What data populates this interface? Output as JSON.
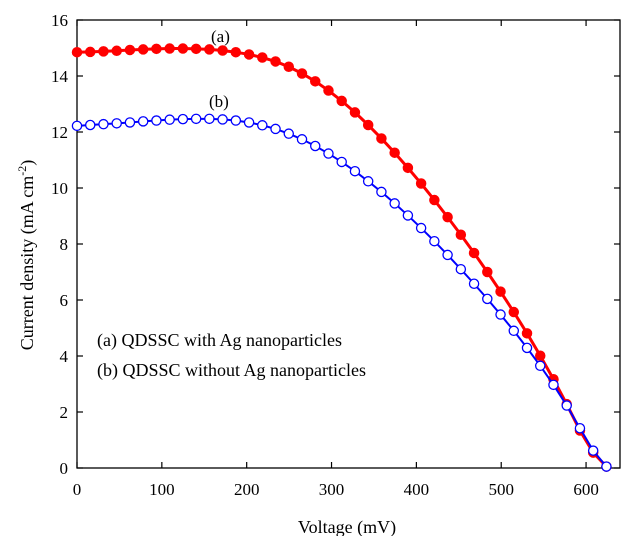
{
  "chart_data": {
    "type": "line",
    "xlabel": "Voltage (mV)",
    "ylabel_main": "Current density (mA cm",
    "ylabel_sup": "-2",
    "ylabel_close": ")",
    "xlim": [
      0,
      640
    ],
    "ylim": [
      0,
      16
    ],
    "x_ticks": [
      0,
      100,
      200,
      300,
      400,
      500,
      600
    ],
    "y_ticks": [
      0,
      2,
      4,
      6,
      8,
      10,
      12,
      14,
      16
    ],
    "legend": [
      "(a) QDSSC with Ag nanoparticles",
      "(b) QDSSC without Ag nanoparticles"
    ],
    "legend_position": "lower-left",
    "grid": false,
    "series": [
      {
        "label": "(a)",
        "color": "#ff0000",
        "marker": "filled-circle",
        "x": [
          0,
          15.6,
          31.2,
          46.8,
          62.4,
          78,
          93.6,
          109.2,
          124.8,
          140.4,
          156,
          171.6,
          187.2,
          202.8,
          218.4,
          234,
          249.6,
          265.2,
          280.8,
          296.4,
          312,
          327.6,
          343.2,
          358.8,
          374.4,
          390,
          405.6,
          421.2,
          436.8,
          452.4,
          468,
          483.6,
          499.2,
          514.8,
          530.4,
          546,
          561.6,
          577.2,
          592.8,
          608.4,
          624
        ],
        "y": [
          14.85,
          14.86,
          14.88,
          14.9,
          14.93,
          14.95,
          14.97,
          14.98,
          14.98,
          14.97,
          14.95,
          14.91,
          14.85,
          14.77,
          14.66,
          14.52,
          14.33,
          14.09,
          13.81,
          13.48,
          13.11,
          12.7,
          12.25,
          11.77,
          11.26,
          10.72,
          10.16,
          9.57,
          8.96,
          8.33,
          7.68,
          7.0,
          6.3,
          5.57,
          4.81,
          4.01,
          3.17,
          2.28,
          1.34,
          0.55,
          0.05
        ]
      },
      {
        "label": "(b)",
        "color": "#0000ff",
        "marker": "open-circle",
        "x": [
          0,
          15.6,
          31.2,
          46.8,
          62.4,
          78,
          93.6,
          109.2,
          124.8,
          140.4,
          156,
          171.6,
          187.2,
          202.8,
          218.4,
          234,
          249.6,
          265.2,
          280.8,
          296.4,
          312,
          327.6,
          343.2,
          358.8,
          374.4,
          390,
          405.6,
          421.2,
          436.8,
          452.4,
          468,
          483.6,
          499.2,
          514.8,
          530.4,
          546,
          561.6,
          577.2,
          592.8,
          608.4,
          624
        ],
        "y": [
          12.22,
          12.25,
          12.28,
          12.31,
          12.34,
          12.38,
          12.41,
          12.44,
          12.46,
          12.47,
          12.47,
          12.45,
          12.41,
          12.34,
          12.24,
          12.11,
          11.94,
          11.74,
          11.5,
          11.23,
          10.93,
          10.6,
          10.24,
          9.86,
          9.45,
          9.02,
          8.57,
          8.1,
          7.61,
          7.1,
          6.58,
          6.04,
          5.48,
          4.9,
          4.29,
          3.65,
          2.97,
          2.23,
          1.42,
          0.62,
          0.05
        ]
      }
    ]
  }
}
